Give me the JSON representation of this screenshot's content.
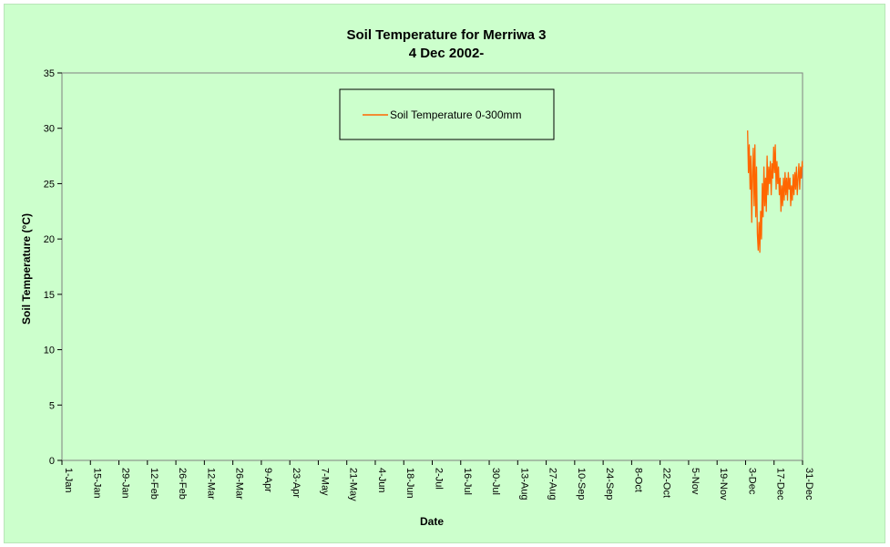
{
  "chart_data": {
    "type": "line",
    "title": [
      "Soil Temperature for Merriwa 3",
      "4 Dec 2002-"
    ],
    "xlabel": "Date",
    "ylabel": "Soil Temperature (°C)",
    "ylim": [
      0,
      35
    ],
    "yticks": [
      0,
      5,
      10,
      15,
      20,
      25,
      30,
      35
    ],
    "xlim_days": [
      1,
      365
    ],
    "xticks": [
      {
        "label": "1-Jan",
        "day": 1
      },
      {
        "label": "15-Jan",
        "day": 15
      },
      {
        "label": "29-Jan",
        "day": 29
      },
      {
        "label": "12-Feb",
        "day": 43
      },
      {
        "label": "26-Feb",
        "day": 57
      },
      {
        "label": "12-Mar",
        "day": 71
      },
      {
        "label": "26-Mar",
        "day": 85
      },
      {
        "label": "9-Apr",
        "day": 99
      },
      {
        "label": "23-Apr",
        "day": 113
      },
      {
        "label": "7-May",
        "day": 127
      },
      {
        "label": "21-May",
        "day": 141
      },
      {
        "label": "4-Jun",
        "day": 155
      },
      {
        "label": "18-Jun",
        "day": 169
      },
      {
        "label": "2-Jul",
        "day": 183
      },
      {
        "label": "16-Jul",
        "day": 197
      },
      {
        "label": "30-Jul",
        "day": 211
      },
      {
        "label": "13-Aug",
        "day": 225
      },
      {
        "label": "27-Aug",
        "day": 239
      },
      {
        "label": "10-Sep",
        "day": 253
      },
      {
        "label": "24-Sep",
        "day": 267
      },
      {
        "label": "8-Oct",
        "day": 281
      },
      {
        "label": "22-Oct",
        "day": 295
      },
      {
        "label": "5-Nov",
        "day": 309
      },
      {
        "label": "19-Nov",
        "day": 323
      },
      {
        "label": "3-Dec",
        "day": 337
      },
      {
        "label": "17-Dec",
        "day": 351
      },
      {
        "label": "31-Dec",
        "day": 365
      }
    ],
    "grid": false,
    "legend_position": "top-center",
    "series": [
      {
        "name": "Soil Temperature  0-300mm",
        "color": "#ff6600",
        "x_days": [
          338.0,
          338.4,
          338.8,
          339.2,
          339.6,
          340.0,
          340.4,
          340.8,
          341.2,
          341.6,
          342.0,
          342.4,
          342.8,
          343.2,
          343.6,
          344.0,
          344.4,
          344.8,
          345.2,
          345.6,
          346.0,
          346.4,
          346.8,
          347.2,
          347.6,
          348.0,
          348.4,
          348.8,
          349.2,
          349.6,
          350.0,
          350.4,
          350.8,
          351.2,
          351.6,
          352.0,
          352.4,
          352.8,
          353.2,
          353.6,
          354.0,
          354.4,
          354.8,
          355.2,
          355.6,
          356.0,
          356.4,
          356.8,
          357.2,
          357.6,
          358.0,
          358.4,
          358.8,
          359.2,
          359.6,
          360.0,
          360.4,
          360.8,
          361.2,
          361.6,
          362.0,
          362.4,
          362.8,
          363.2,
          363.6,
          364.0,
          364.4,
          364.8,
          365.0
        ],
        "values": [
          29.8,
          26.0,
          28.5,
          24.5,
          27.5,
          21.5,
          26.0,
          28.2,
          23.0,
          28.5,
          22.0,
          26.5,
          20.5,
          19.0,
          21.5,
          18.8,
          22.5,
          20.0,
          25.0,
          22.0,
          26.5,
          23.0,
          25.5,
          22.5,
          27.5,
          24.0,
          26.5,
          25.0,
          27.0,
          24.0,
          26.8,
          25.5,
          28.3,
          26.0,
          28.5,
          24.5,
          27.0,
          25.0,
          26.5,
          24.0,
          25.5,
          22.5,
          24.8,
          23.0,
          25.5,
          23.5,
          26.0,
          24.0,
          25.5,
          23.5,
          26.0,
          24.5,
          25.5,
          23.0,
          24.8,
          23.5,
          25.8,
          24.0,
          26.0,
          24.5,
          26.5,
          24.0,
          25.5,
          26.8,
          24.5,
          26.5,
          25.5,
          27.0,
          26.5
        ]
      }
    ]
  }
}
